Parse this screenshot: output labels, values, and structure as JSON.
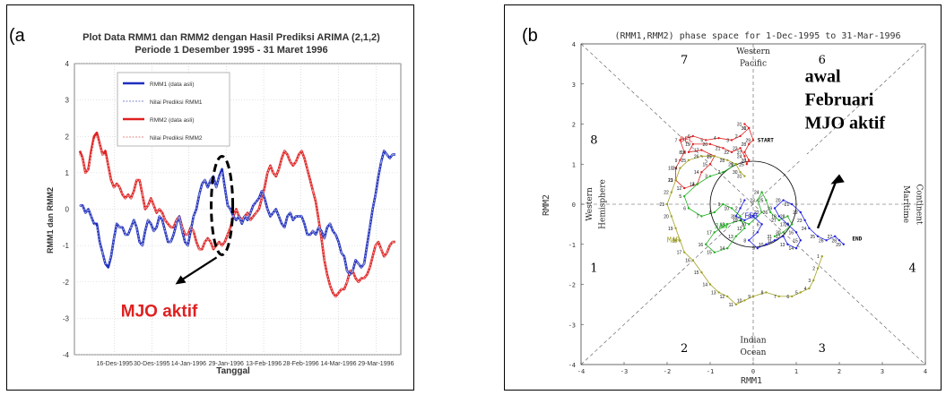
{
  "panels": {
    "a_label": "(a",
    "b_label": "(b"
  },
  "chart_data": [
    {
      "type": "line",
      "title": "Plot Data RMM1 dan RMM2 dengan Hasil Prediksi ARIMA (2,1,2)",
      "subtitle": "Periode 1 Desember 1995 - 31 Maret 1996",
      "xlabel": "Tanggal",
      "ylabel": "RMM1 dan RMM2",
      "ylim": [
        -4,
        4
      ],
      "yticks": [
        "4",
        "3",
        "2",
        "1",
        "0",
        "-1",
        "-2",
        "-3",
        "-4"
      ],
      "xticks": [
        "16-Des-1995",
        "30-Des-1995",
        "14-Jan-1996",
        "29-Jan-1996",
        "13-Feb-1996",
        "28-Feb-1996",
        "14-Mar-1996",
        "29-Mar-1996"
      ],
      "grid": true,
      "legend_placement": "top-left",
      "legend": [
        "RMM1 (data asli)",
        "Nilai Prediksi RMM1",
        "RMM2 (data asli)",
        "Nilai Prediksi RMM2"
      ],
      "annotation": "MJO aktif",
      "annotation_color": "#e02020",
      "series": [
        {
          "name": "RMM1 (data asli)",
          "color": "#1f2fbf",
          "values": [
            0.1,
            0.1,
            -0.1,
            0.0,
            -0.2,
            -0.4,
            -0.4,
            -0.9,
            -1.2,
            -1.5,
            -1.6,
            -1.3,
            -0.8,
            -0.4,
            -0.5,
            -0.5,
            -0.7,
            -0.7,
            -0.5,
            -0.3,
            -0.5,
            -0.9,
            -1.0,
            -0.6,
            -0.3,
            -0.4,
            -0.6,
            -0.5,
            -0.2,
            -0.3,
            -0.6,
            -0.9,
            -0.9,
            -0.7,
            -0.4,
            -0.2,
            -0.6,
            -0.9,
            -1.0,
            -0.6,
            -0.2,
            0.0,
            0.4,
            0.7,
            0.8,
            0.6,
            0.8,
            0.9,
            0.6,
            0.9,
            1.1,
            0.6,
            0.1,
            0.0,
            -0.2,
            -0.3,
            -0.2,
            -0.4,
            -0.2,
            -0.3,
            -0.1,
            0.1,
            0.2,
            0.3,
            0.5,
            0.3,
            0.0,
            -0.2,
            -0.1,
            0.0,
            -0.2,
            -0.4,
            -0.5,
            -0.2,
            -0.1,
            -0.3,
            -0.2,
            -0.2,
            -0.2,
            -0.4,
            -0.7,
            -0.7,
            -0.6,
            -0.7,
            -0.5,
            -0.6,
            -0.8,
            -0.5,
            -0.4,
            -0.6,
            -0.7,
            -0.9,
            -1.2,
            -1.3,
            -1.7,
            -1.8,
            -1.7,
            -1.4,
            -1.5,
            -1.6,
            -1.5,
            -1.0,
            -0.5,
            0.0,
            0.4,
            0.9,
            1.3,
            1.6,
            1.5,
            1.4,
            1.5,
            1.5
          ]
        },
        {
          "name": "Nilai Prediksi RMM1",
          "color": "#9aa0d8",
          "values": [
            0.1,
            0.1,
            -0.1,
            0.0,
            -0.2,
            -0.4,
            -0.5,
            -0.9,
            -1.2,
            -1.5,
            -1.5,
            -1.3,
            -0.8,
            -0.4,
            -0.5,
            -0.5,
            -0.7,
            -0.7,
            -0.5,
            -0.3,
            -0.5,
            -0.9,
            -1.0,
            -0.6,
            -0.3,
            -0.4,
            -0.6,
            -0.5,
            -0.2,
            -0.3,
            -0.6,
            -0.9,
            -0.9,
            -0.7,
            -0.4,
            -0.2,
            -0.6,
            -0.9,
            -1.0,
            -0.6,
            -0.2,
            0.0,
            0.4,
            0.7,
            0.8,
            0.6,
            0.8,
            0.9,
            0.6,
            0.9,
            1.0,
            0.6,
            0.1,
            0.0,
            -0.2,
            -0.3,
            -0.2,
            -0.4,
            -0.2,
            -0.3,
            -0.1,
            0.1,
            0.2,
            0.3,
            0.5,
            0.3,
            0.0,
            -0.2,
            -0.1,
            0.0,
            -0.2,
            -0.4,
            -0.5,
            -0.2,
            -0.1,
            -0.3,
            -0.2,
            -0.2,
            -0.2,
            -0.4,
            -0.7,
            -0.7,
            -0.6,
            -0.7,
            -0.5,
            -0.6,
            -0.8,
            -0.5,
            -0.4,
            -0.6,
            -0.7,
            -0.9,
            -1.2,
            -1.3,
            -1.7,
            -1.8,
            -1.7,
            -1.4,
            -1.5,
            -1.6,
            -1.5,
            -1.0,
            -0.5,
            0.0,
            0.4,
            0.9,
            1.3,
            1.6,
            1.5,
            1.4,
            1.5,
            1.5
          ]
        },
        {
          "name": "RMM2 (data asli)",
          "color": "#e02020",
          "values": [
            1.6,
            1.4,
            1.0,
            1.1,
            1.6,
            2.0,
            2.1,
            1.8,
            1.5,
            1.6,
            1.2,
            0.8,
            0.6,
            0.7,
            0.6,
            0.4,
            0.3,
            0.4,
            0.3,
            0.5,
            0.8,
            0.8,
            0.4,
            0.0,
            0.1,
            0.3,
            0.1,
            -0.1,
            0.0,
            -0.1,
            -0.3,
            -0.4,
            -0.5,
            -0.5,
            -0.3,
            -0.2,
            -0.5,
            -0.7,
            -0.7,
            -0.5,
            -0.6,
            -0.9,
            -1.1,
            -1.1,
            -0.9,
            -0.8,
            -0.9,
            -1.1,
            -1.0,
            -0.9,
            -1.0,
            -0.9,
            -0.7,
            -0.5,
            -0.2,
            0.0,
            -0.2,
            -0.3,
            -0.2,
            -0.1,
            -0.3,
            -0.2,
            -0.1,
            0.0,
            0.3,
            0.6,
            1.0,
            1.2,
            1.0,
            0.9,
            1.1,
            1.4,
            1.6,
            1.5,
            1.3,
            1.2,
            1.3,
            1.5,
            1.6,
            1.4,
            1.1,
            0.8,
            0.5,
            0.2,
            -0.3,
            -0.8,
            -1.4,
            -1.8,
            -2.1,
            -2.3,
            -2.4,
            -2.3,
            -2.2,
            -2.2,
            -2.0,
            -1.7,
            -1.7,
            -1.9,
            -2.0,
            -1.9,
            -1.9,
            -1.8,
            -1.6,
            -1.3,
            -1.0,
            -0.9,
            -1.1,
            -1.3,
            -1.2,
            -1.0,
            -0.9,
            -0.9
          ]
        },
        {
          "name": "Nilai Prediksi RMM2",
          "color": "#e8a0a0",
          "values": [
            1.5,
            1.4,
            1.0,
            1.1,
            1.5,
            1.9,
            2.0,
            1.8,
            1.5,
            1.5,
            1.2,
            0.8,
            0.6,
            0.7,
            0.6,
            0.4,
            0.3,
            0.4,
            0.3,
            0.5,
            0.8,
            0.8,
            0.4,
            0.0,
            0.1,
            0.3,
            0.1,
            -0.1,
            0.0,
            -0.1,
            -0.3,
            -0.4,
            -0.5,
            -0.5,
            -0.3,
            -0.2,
            -0.5,
            -0.7,
            -0.7,
            -0.5,
            -0.6,
            -0.9,
            -1.1,
            -1.1,
            -0.9,
            -0.8,
            -0.9,
            -1.1,
            -1.0,
            -0.9,
            -1.0,
            -0.9,
            -0.7,
            -0.5,
            -0.2,
            0.0,
            -0.2,
            -0.3,
            -0.2,
            -0.1,
            -0.3,
            -0.2,
            -0.1,
            0.0,
            0.3,
            0.6,
            1.0,
            1.2,
            1.0,
            0.9,
            1.1,
            1.4,
            1.6,
            1.5,
            1.3,
            1.2,
            1.3,
            1.5,
            1.6,
            1.4,
            1.1,
            0.8,
            0.5,
            0.2,
            -0.3,
            -0.8,
            -1.4,
            -1.8,
            -2.1,
            -2.3,
            -2.4,
            -2.3,
            -2.2,
            -2.2,
            -2.0,
            -1.7,
            -1.7,
            -1.9,
            -2.0,
            -1.9,
            -1.9,
            -1.8,
            -1.6,
            -1.3,
            -1.0,
            -0.9,
            -1.1,
            -1.3,
            -1.2,
            -1.0,
            -0.9,
            -0.9
          ]
        }
      ]
    },
    {
      "type": "scatter",
      "title": "(RMM1,RMM2) phase space for   1-Dec-1995 to 31-Mar-1996",
      "xlabel": "RMM1",
      "ylabel": "RMM2",
      "xlim": [
        -4,
        4
      ],
      "ylim": [
        -4,
        4
      ],
      "xticks": [
        "-4",
        "-3",
        "-2",
        "-1",
        "0",
        "1",
        "2",
        "3",
        "4"
      ],
      "yticks": [
        "4",
        "3",
        "2",
        "1",
        "0",
        "-1",
        "-2",
        "-3",
        "-4"
      ],
      "phase_numbers": [
        "1",
        "2",
        "3",
        "4",
        "5",
        "6",
        "7",
        "8"
      ],
      "region_labels": {
        "top": [
          "Western",
          "Pacific"
        ],
        "bottom": [
          "Indian",
          "Ocean"
        ],
        "left": [
          "Western",
          "Hemisphere"
        ],
        "right": [
          "Maritime",
          "Continent"
        ]
      },
      "annotation": [
        "awal",
        "Februari",
        "MJO aktif"
      ],
      "start_label": "START",
      "end_label": "END",
      "month_labels": [
        {
          "text": "DEC",
          "color": "#e02020"
        },
        {
          "text": "JAN",
          "color": "#20b020"
        },
        {
          "text": "FEB",
          "color": "#2020e0"
        },
        {
          "text": "MAR",
          "color": "#a0a020"
        }
      ],
      "series": [
        {
          "name": "DEC",
          "color": "#e02020",
          "points": [
            [
              -0.1,
              1.9
            ],
            [
              -0.3,
              1.7
            ],
            [
              -0.5,
              1.6
            ],
            [
              -0.8,
              1.65
            ],
            [
              -1.1,
              1.6
            ],
            [
              -1.4,
              1.7
            ],
            [
              -1.7,
              1.6
            ],
            [
              -1.6,
              1.3
            ],
            [
              -1.7,
              1.1
            ],
            [
              -1.8,
              0.9
            ],
            [
              -1.8,
              0.6
            ],
            [
              -1.6,
              0.4
            ],
            [
              -1.3,
              0.5
            ],
            [
              -1.2,
              0.8
            ],
            [
              -1.0,
              1.0
            ],
            [
              -0.9,
              1.2
            ],
            [
              -1.2,
              1.35
            ],
            [
              -1.5,
              1.3
            ],
            [
              -1.4,
              1.5
            ],
            [
              -1.0,
              1.5
            ],
            [
              -0.7,
              1.4
            ],
            [
              -0.5,
              1.3
            ],
            [
              -0.3,
              1.4
            ],
            [
              -0.2,
              1.2
            ],
            [
              -0.15,
              1.0
            ],
            [
              -0.1,
              1.1
            ],
            [
              -0.2,
              1.3
            ],
            [
              -0.1,
              1.5
            ],
            [
              0.0,
              1.6
            ],
            [
              -0.1,
              1.9
            ],
            [
              -0.2,
              2.0
            ]
          ]
        },
        {
          "name": "JAN",
          "color": "#20b020",
          "points": [
            [
              -0.4,
              1.0
            ],
            [
              -0.7,
              0.8
            ],
            [
              -1.0,
              0.7
            ],
            [
              -1.3,
              0.5
            ],
            [
              -1.6,
              0.2
            ],
            [
              -1.5,
              -0.1
            ],
            [
              -1.2,
              -0.3
            ],
            [
              -0.9,
              -0.2
            ],
            [
              -0.7,
              0.0
            ],
            [
              -0.5,
              -0.1
            ],
            [
              -0.3,
              -0.3
            ],
            [
              -0.2,
              -0.6
            ],
            [
              -0.4,
              -0.8
            ],
            [
              -0.6,
              -1.1
            ],
            [
              -0.9,
              -1.2
            ],
            [
              -1.1,
              -1.0
            ],
            [
              -0.9,
              -0.7
            ],
            [
              -0.6,
              -0.5
            ],
            [
              -0.3,
              -0.4
            ],
            [
              -0.1,
              -0.5
            ],
            [
              0.1,
              -0.3
            ],
            [
              0.2,
              -0.2
            ],
            [
              0.1,
              0.1
            ],
            [
              0.2,
              0.3
            ],
            [
              0.3,
              0.1
            ],
            [
              0.4,
              -0.2
            ],
            [
              0.6,
              -0.4
            ],
            [
              0.8,
              -0.3
            ],
            [
              0.9,
              -0.5
            ],
            [
              0.7,
              -0.7
            ],
            [
              0.5,
              -0.8
            ]
          ]
        },
        {
          "name": "FEB",
          "color": "#2020e0",
          "points": [
            [
              -0.2,
              0.1
            ],
            [
              -0.3,
              -0.1
            ],
            [
              -0.4,
              -0.3
            ],
            [
              -0.2,
              -0.4
            ],
            [
              0.0,
              -0.3
            ],
            [
              0.2,
              -0.5
            ],
            [
              0.1,
              -0.7
            ],
            [
              -0.1,
              -0.9
            ],
            [
              0.1,
              -1.1
            ],
            [
              0.3,
              -1.0
            ],
            [
              0.5,
              -0.9
            ],
            [
              0.7,
              -0.8
            ],
            [
              0.8,
              -1.0
            ],
            [
              1.0,
              -1.1
            ],
            [
              1.1,
              -0.9
            ],
            [
              1.0,
              -0.7
            ],
            [
              0.8,
              -0.5
            ],
            [
              0.6,
              -0.3
            ],
            [
              0.5,
              -0.1
            ],
            [
              0.7,
              0.1
            ],
            [
              0.9,
              0.0
            ],
            [
              1.1,
              -0.2
            ],
            [
              1.2,
              -0.4
            ],
            [
              1.3,
              -0.6
            ],
            [
              1.5,
              -0.8
            ],
            [
              1.7,
              -0.9
            ],
            [
              1.9,
              -0.8
            ],
            [
              2.0,
              -0.9
            ],
            [
              2.1,
              -1.0
            ]
          ]
        },
        {
          "name": "MAR",
          "color": "#a0a020",
          "points": [
            [
              1.6,
              -1.3
            ],
            [
              1.5,
              -1.6
            ],
            [
              1.4,
              -1.9
            ],
            [
              1.3,
              -2.1
            ],
            [
              1.1,
              -2.2
            ],
            [
              0.9,
              -2.3
            ],
            [
              0.6,
              -2.3
            ],
            [
              0.3,
              -2.2
            ],
            [
              0.0,
              -2.3
            ],
            [
              -0.2,
              -2.4
            ],
            [
              -0.4,
              -2.5
            ],
            [
              -0.6,
              -2.3
            ],
            [
              -0.8,
              -2.2
            ],
            [
              -1.0,
              -2.0
            ],
            [
              -1.2,
              -1.7
            ],
            [
              -1.4,
              -1.4
            ],
            [
              -1.6,
              -1.2
            ],
            [
              -1.7,
              -0.9
            ],
            [
              -1.8,
              -0.6
            ],
            [
              -1.9,
              -0.3
            ],
            [
              -2.0,
              0.0
            ],
            [
              -1.9,
              0.3
            ],
            [
              -1.8,
              0.6
            ],
            [
              -1.7,
              0.9
            ],
            [
              -1.5,
              1.1
            ],
            [
              -1.2,
              1.2
            ],
            [
              -0.9,
              1.2
            ],
            [
              -0.6,
              1.1
            ],
            [
              -0.4,
              1.0
            ],
            [
              -0.3,
              0.8
            ],
            [
              -0.2,
              0.7
            ]
          ]
        }
      ]
    }
  ]
}
